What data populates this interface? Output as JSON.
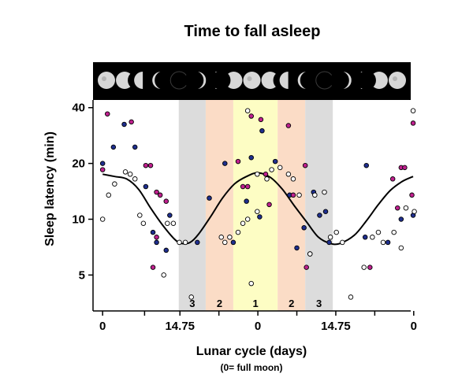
{
  "chart_data": {
    "type": "scatter",
    "title": "Time to fall asleep",
    "xlabel": "Lunar cycle (days)",
    "xlabel_sub": "(0= full moon)",
    "ylabel": "Sleep latency (min)",
    "y_scale": "log",
    "ylim": [
      3.2,
      44
    ],
    "xlim": [
      -0.8,
      25.7
    ],
    "x_ticks": [
      {
        "x": 0,
        "label": "0"
      },
      {
        "x": 3.5,
        "label": ""
      },
      {
        "x": 6.45,
        "label": "14.75"
      },
      {
        "x": 9.7,
        "label": ""
      },
      {
        "x": 12.95,
        "label": "0"
      },
      {
        "x": 16.2,
        "label": ""
      },
      {
        "x": 19.45,
        "label": "14.75"
      },
      {
        "x": 22.7,
        "label": ""
      },
      {
        "x": 25.95,
        "label": "0"
      }
    ],
    "y_ticks": [
      {
        "v": 5,
        "label": "5"
      },
      {
        "v": 10,
        "label": "10"
      },
      {
        "v": 20,
        "label": "20"
      },
      {
        "v": 40,
        "label": "40"
      }
    ],
    "grid": false,
    "moon_strip": {
      "background": "#000000",
      "phases": [
        "full",
        "waning-gibbous",
        "last-quarter",
        "waning-crescent",
        "new",
        "waxing-crescent",
        "first-quarter",
        "waxing-gibbous",
        "full",
        "waning-gibbous",
        "last-quarter",
        "waning-crescent",
        "new",
        "waxing-crescent",
        "first-quarter",
        "waxing-gibbous",
        "full"
      ]
    },
    "bands": [
      {
        "label": "3",
        "x0": 6.35,
        "x1": 8.6,
        "color": "#dcdcdc"
      },
      {
        "label": "2",
        "x0": 8.6,
        "x1": 10.9,
        "color": "#fbdcc6"
      },
      {
        "label": "1",
        "x0": 10.9,
        "x1": 14.6,
        "color": "#fdfdc4"
      },
      {
        "label": "2",
        "x0": 14.6,
        "x1": 16.9,
        "color": "#fbdcc6"
      },
      {
        "label": "3",
        "x0": 16.9,
        "x1": 19.2,
        "color": "#dcdcdc"
      }
    ],
    "legend": "none",
    "series": [
      {
        "marker": "blue",
        "color": "#1f2f8f",
        "points": [
          [
            0,
            20.0
          ],
          [
            0.9,
            24.5
          ],
          [
            1.8,
            32.5
          ],
          [
            2.7,
            24.5
          ],
          [
            3.6,
            15.0
          ],
          [
            4.2,
            8.5
          ],
          [
            4.5,
            7.5
          ],
          [
            5.3,
            6.8
          ],
          [
            5.6,
            10.5
          ],
          [
            7.9,
            7.5
          ],
          [
            8.9,
            13.0
          ],
          [
            10.2,
            20.0
          ],
          [
            10.9,
            7.5
          ],
          [
            12.0,
            12.5
          ],
          [
            12.4,
            21.5
          ],
          [
            13.1,
            10.3
          ],
          [
            13.3,
            30.0
          ],
          [
            14.4,
            20.5
          ],
          [
            15.6,
            13.5
          ],
          [
            16.2,
            7.0
          ],
          [
            16.8,
            9.0
          ],
          [
            17.6,
            14.0
          ],
          [
            18.9,
            7.5
          ],
          [
            18.1,
            10.5
          ],
          [
            18.6,
            11.0
          ],
          [
            21.9,
            8.0
          ],
          [
            22.0,
            19.5
          ],
          [
            23.8,
            7.5
          ],
          [
            24.9,
            10.0
          ],
          [
            25.9,
            10.5
          ]
        ]
      },
      {
        "marker": "magenta",
        "color": "#c0208f",
        "points": [
          [
            0,
            18.5
          ],
          [
            0.4,
            37.0
          ],
          [
            2.4,
            33.5
          ],
          [
            3.6,
            19.5
          ],
          [
            4.0,
            19.5
          ],
          [
            4.5,
            14.0
          ],
          [
            4.8,
            13.5
          ],
          [
            4.2,
            5.5
          ],
          [
            4.5,
            8.0
          ],
          [
            5.3,
            12.5
          ],
          [
            11.3,
            20.5
          ],
          [
            11.7,
            15.0
          ],
          [
            12.1,
            15.0
          ],
          [
            12.4,
            36.0
          ],
          [
            13.2,
            34.5
          ],
          [
            13.6,
            17.5
          ],
          [
            13.9,
            12.0
          ],
          [
            15.5,
            32.0
          ],
          [
            15.9,
            13.5
          ],
          [
            16.9,
            19.5
          ],
          [
            17.3,
            6.5
          ],
          [
            17.0,
            5.5
          ],
          [
            22.3,
            5.5
          ],
          [
            24.9,
            19.0
          ],
          [
            25.2,
            19.0
          ],
          [
            24.2,
            16.5
          ],
          [
            24.6,
            11.5
          ],
          [
            25.8,
            13.5
          ],
          [
            25.9,
            33.0
          ]
        ]
      },
      {
        "marker": "white",
        "color": "#ffffff",
        "points": [
          [
            0,
            10.0
          ],
          [
            0.5,
            13.5
          ],
          [
            1.0,
            15.5
          ],
          [
            1.9,
            18.0
          ],
          [
            2.3,
            17.5
          ],
          [
            2.7,
            16.5
          ],
          [
            3.1,
            10.5
          ],
          [
            3.4,
            9.5
          ],
          [
            5.1,
            5.0
          ],
          [
            5.4,
            9.5
          ],
          [
            5.9,
            9.5
          ],
          [
            6.4,
            7.5
          ],
          [
            6.9,
            7.5
          ],
          [
            7.4,
            3.8
          ],
          [
            9.9,
            8.0
          ],
          [
            10.2,
            7.5
          ],
          [
            10.6,
            8.0
          ],
          [
            11.3,
            8.5
          ],
          [
            11.7,
            9.5
          ],
          [
            12.1,
            10.0
          ],
          [
            12.4,
            4.5
          ],
          [
            12.9,
            11.0
          ],
          [
            12.1,
            38.5
          ],
          [
            12.9,
            17.5
          ],
          [
            13.7,
            16.5
          ],
          [
            14.1,
            18.5
          ],
          [
            14.8,
            19.0
          ],
          [
            15.5,
            17.5
          ],
          [
            15.9,
            16.5
          ],
          [
            16.4,
            13.5
          ],
          [
            17.3,
            6.5
          ],
          [
            17.7,
            13.5
          ],
          [
            18.5,
            14.0
          ],
          [
            19.0,
            8.0
          ],
          [
            19.5,
            8.5
          ],
          [
            20.0,
            7.5
          ],
          [
            20.7,
            3.8
          ],
          [
            21.8,
            5.5
          ],
          [
            22.5,
            8.0
          ],
          [
            23.0,
            8.5
          ],
          [
            23.4,
            7.5
          ],
          [
            24.3,
            8.5
          ],
          [
            24.9,
            7.0
          ],
          [
            25.3,
            11.5
          ],
          [
            25.9,
            38.5
          ],
          [
            26.0,
            11.0
          ]
        ]
      }
    ],
    "fit_curve": {
      "type": "line",
      "color": "#000000",
      "points": [
        [
          0,
          17.5
        ],
        [
          1.0,
          17.0
        ],
        [
          2.0,
          16.5
        ],
        [
          3.0,
          14.5
        ],
        [
          4.0,
          11.5
        ],
        [
          5.0,
          9.3
        ],
        [
          6.0,
          7.8
        ],
        [
          6.6,
          7.4
        ],
        [
          7.3,
          7.5
        ],
        [
          8.0,
          8.3
        ],
        [
          9.0,
          10.3
        ],
        [
          10.0,
          13.0
        ],
        [
          11.0,
          15.5
        ],
        [
          12.0,
          17.0
        ],
        [
          12.95,
          17.8
        ],
        [
          14.0,
          16.8
        ],
        [
          15.0,
          14.5
        ],
        [
          16.0,
          11.8
        ],
        [
          17.0,
          9.7
        ],
        [
          18.0,
          8.0
        ],
        [
          19.0,
          7.4
        ],
        [
          19.8,
          7.4
        ],
        [
          21.0,
          8.2
        ],
        [
          22.0,
          9.8
        ],
        [
          23.0,
          12.0
        ],
        [
          24.0,
          14.3
        ],
        [
          25.0,
          16.0
        ],
        [
          25.9,
          17.0
        ]
      ]
    }
  }
}
